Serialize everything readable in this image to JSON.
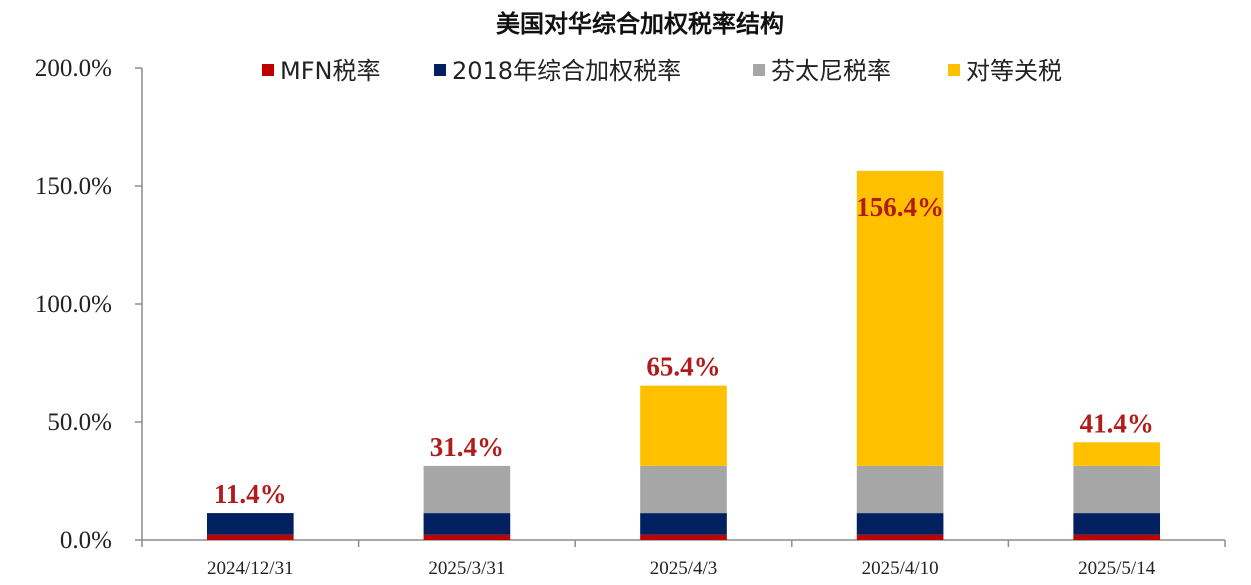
{
  "chart_data": {
    "type": "bar",
    "stacked": true,
    "title": "美国对华综合加权税率结构",
    "xlabel": "",
    "ylabel": "",
    "categories": [
      "2024/12/31",
      "2025/3/31",
      "2025/4/3",
      "2025/4/10",
      "2025/5/14"
    ],
    "ylim": [
      0,
      200
    ],
    "yticks": [
      "0.0%",
      "50.0%",
      "100.0%",
      "150.0%",
      "200.0%"
    ],
    "yticks_values": [
      0,
      50,
      100,
      150,
      200
    ],
    "grid": false,
    "legend_position": "top",
    "series": [
      {
        "name": "MFN税率",
        "color": "#c00000",
        "values": [
          2.2,
          2.2,
          2.2,
          2.2,
          2.2
        ]
      },
      {
        "name": "2018年综合加权税率",
        "color": "#002060",
        "values": [
          9.2,
          9.2,
          9.2,
          9.2,
          9.2
        ]
      },
      {
        "name": "芬太尼税率",
        "color": "#a6a6a6",
        "values": [
          0,
          20,
          20,
          20,
          20
        ]
      },
      {
        "name": "对等关税",
        "color": "#ffc000",
        "values": [
          0,
          0,
          34,
          125,
          10
        ]
      }
    ],
    "totals": [
      11.4,
      31.4,
      65.4,
      156.4,
      41.4
    ],
    "total_labels": [
      "11.4%",
      "31.4%",
      "65.4%",
      "156.4%",
      "41.4%"
    ]
  }
}
